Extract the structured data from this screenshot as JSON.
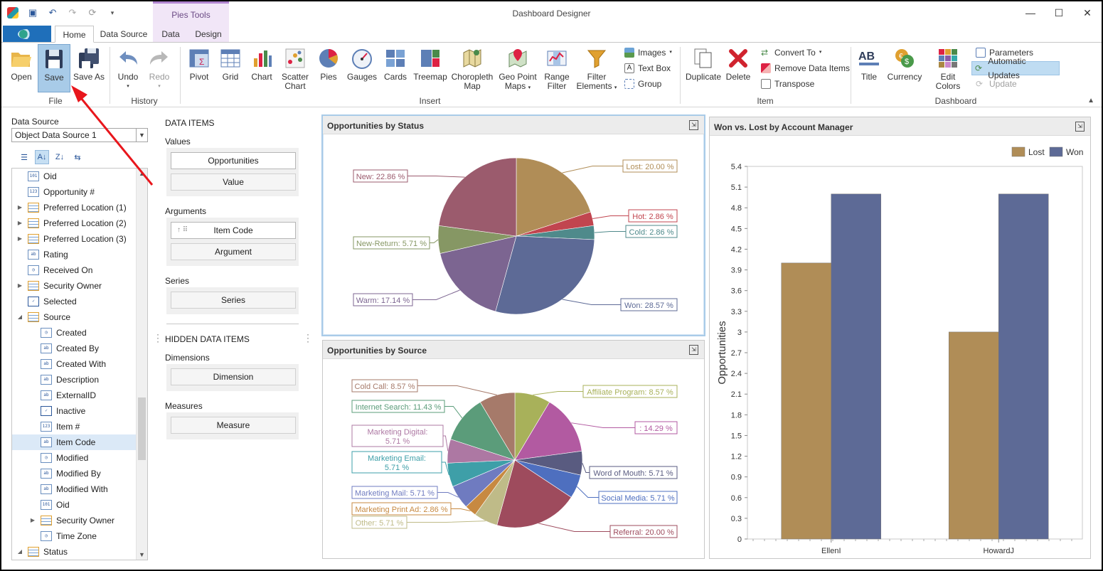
{
  "window": {
    "title": "Dashboard Designer",
    "context_tab_group": "Pies Tools"
  },
  "tabs": [
    "Home",
    "Data Source",
    "Data",
    "Design"
  ],
  "ribbon": {
    "file": {
      "group": "File",
      "open": "Open",
      "save": "Save",
      "save_as": "Save As"
    },
    "history": {
      "group": "History",
      "undo": "Undo",
      "redo": "Redo"
    },
    "insert": {
      "group": "Insert",
      "pivot": "Pivot",
      "grid": "Grid",
      "chart": "Chart",
      "scatter1": "Scatter",
      "scatter2": "Chart",
      "pies": "Pies",
      "gauges": "Gauges",
      "cards": "Cards",
      "treemap": "Treemap",
      "choro1": "Choropleth",
      "choro2": "Map",
      "geo1": "Geo Point",
      "geo2": "Maps",
      "range1": "Range",
      "range2": "Filter",
      "filter1": "Filter",
      "filter2": "Elements",
      "images": "Images",
      "text_box": "Text Box",
      "group_btn": "Group"
    },
    "item": {
      "group": "Item",
      "duplicate": "Duplicate",
      "delete": "Delete",
      "convert_to": "Convert To",
      "remove_data_items": "Remove Data Items",
      "transpose": "Transpose"
    },
    "dashboard": {
      "group": "Dashboard",
      "title": "Title",
      "currency": "Currency",
      "edit_colors": "Edit Colors",
      "parameters": "Parameters",
      "automatic_updates": "Automatic Updates",
      "update": "Update"
    }
  },
  "data_source": {
    "label": "Data Source",
    "selected": "Object Data Source 1",
    "tree": [
      "Oid",
      "Opportunity #",
      "Preferred Location (1)",
      "Preferred Location (2)",
      "Preferred Location (3)",
      "Rating",
      "Received On",
      "Security Owner",
      "Selected",
      "Source",
      "Created",
      "Created By",
      "Created With",
      "Description",
      "ExternalID",
      "Inactive",
      "Item #",
      "Item Code",
      "Modified",
      "Modified By",
      "Modified With",
      "Oid",
      "Security Owner",
      "Time Zone",
      "Status"
    ]
  },
  "data_items": {
    "title": "DATA ITEMS",
    "values_label": "Values",
    "values_item": "Opportunities",
    "values_placeholder": "Value",
    "arguments_label": "Arguments",
    "arguments_item": "Item Code",
    "arguments_placeholder": "Argument",
    "series_label": "Series",
    "series_placeholder": "Series",
    "hidden_title": "HIDDEN DATA ITEMS",
    "dimensions_label": "Dimensions",
    "dimensions_placeholder": "Dimension",
    "measures_label": "Measures",
    "measures_placeholder": "Measure"
  },
  "panels": {
    "status_title": "Opportunities by Status",
    "source_title": "Opportunities by Source",
    "bar_title": "Won vs. Lost by Account Manager"
  },
  "chart_data": [
    {
      "type": "pie",
      "title": "Opportunities by Status",
      "slices": [
        {
          "label": "Lost: 20.00 %",
          "value": 20.0,
          "color": "#b08d57"
        },
        {
          "label": "Hot: 2.86 %",
          "value": 2.86,
          "color": "#c1454f"
        },
        {
          "label": "Cold: 2.86 %",
          "value": 2.86,
          "color": "#4f8a8b"
        },
        {
          "label": "Won: 28.57 %",
          "value": 28.57,
          "color": "#5d6a96"
        },
        {
          "label": "Warm: 17.14 %",
          "value": 17.14,
          "color": "#7c6591"
        },
        {
          "label": "New-Return: 5.71 %",
          "value": 5.71,
          "color": "#869764"
        },
        {
          "label": "New: 22.86 %",
          "value": 22.86,
          "color": "#9b5b6d"
        }
      ]
    },
    {
      "type": "pie",
      "title": "Opportunities by Source",
      "slices": [
        {
          "label": "Affiliate Program: 8.57 %",
          "value": 8.57,
          "color": "#a8b15a"
        },
        {
          "label": ": 14.29 %",
          "value": 14.29,
          "color": "#b25aa1"
        },
        {
          "label": "Word of Mouth: 5.71 %",
          "value": 5.71,
          "color": "#595b80"
        },
        {
          "label": "Social Media: 5.71 %",
          "value": 5.71,
          "color": "#4e6fbf"
        },
        {
          "label": "Referral: 20.00 %",
          "value": 20.0,
          "color": "#9e4b5d"
        },
        {
          "label": "Other: 5.71 %",
          "value": 5.71,
          "color": "#bfbb88"
        },
        {
          "label": "Marketing Print Ad: 2.86 %",
          "value": 2.86,
          "color": "#c78941"
        },
        {
          "label": "Marketing Mail: 5.71 %",
          "value": 5.71,
          "color": "#6f7bc0"
        },
        {
          "label": "Marketing Email: 5.71 %",
          "value": 5.71,
          "color": "#3e9fa8"
        },
        {
          "label": "Marketing Digital: 5.71 %",
          "value": 5.71,
          "color": "#ad78a3"
        },
        {
          "label": "Internet Search: 11.43 %",
          "value": 11.43,
          "color": "#5b9c7a"
        },
        {
          "label": "Cold Call: 8.57 %",
          "value": 8.57,
          "color": "#a67a6a"
        }
      ]
    },
    {
      "type": "bar",
      "title": "Won vs. Lost by Account Manager",
      "categories": [
        "EllenI",
        "HowardJ"
      ],
      "series": [
        {
          "name": "Lost",
          "values": [
            4,
            3
          ],
          "color": "#b08d57"
        },
        {
          "name": "Won",
          "values": [
            5,
            5
          ],
          "color": "#5d6a96"
        }
      ],
      "ylabel": "Opportunities",
      "yticks": [
        "0",
        "0.3",
        "0.6",
        "0.9",
        "1.2",
        "1.5",
        "1.8",
        "2.1",
        "2.4",
        "2.7",
        "3",
        "3.3",
        "3.6",
        "3.9",
        "4.2",
        "4.5",
        "4.8",
        "5.1",
        "5.4"
      ],
      "ylim": [
        0,
        5.4
      ],
      "legend": "top-right"
    }
  ]
}
